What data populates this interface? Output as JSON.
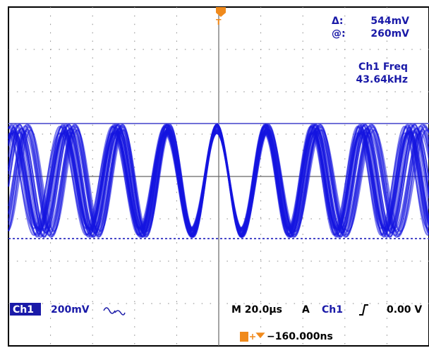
{
  "cursor_readout": {
    "delta_label": "Δ:",
    "delta_value": "544mV",
    "at_label": "@:",
    "at_value": "260mV"
  },
  "measurement": {
    "label": "Ch1 Freq",
    "value": "43.64kHz"
  },
  "status_bar": {
    "channel": "Ch1",
    "volts_per_div": "200mV",
    "timebase": "M 20.0µs",
    "trigger_mode": "A",
    "trigger_source": "Ch1",
    "trigger_level": "0.00 V",
    "trigger_offset": "−160.000ns"
  }
}
